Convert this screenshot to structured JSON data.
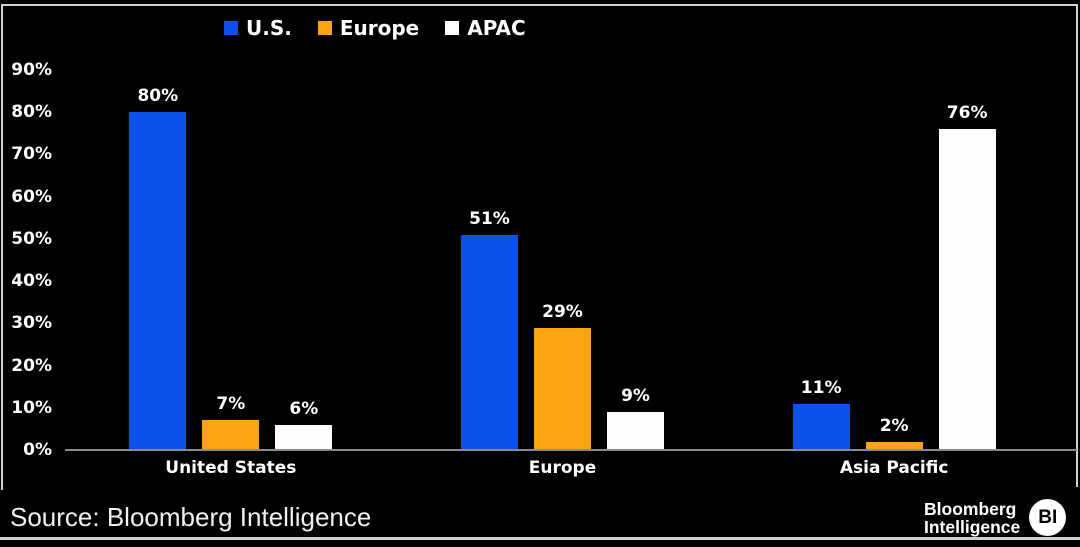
{
  "chart_data": {
    "type": "bar",
    "title": "",
    "categories": [
      "United States",
      "Europe",
      "Asia Pacific"
    ],
    "series": [
      {
        "name": "U.S.",
        "color": "#0d52e8",
        "values": [
          80,
          51,
          11
        ]
      },
      {
        "name": "Europe",
        "color": "#fca414",
        "values": [
          7,
          29,
          2
        ]
      },
      {
        "name": "APAC",
        "color": "#fdfdfb",
        "values": [
          6,
          9,
          76
        ]
      }
    ],
    "value_label_suffix": "%",
    "y_ticks": [
      0,
      10,
      20,
      30,
      40,
      50,
      60,
      70,
      80,
      90
    ],
    "y_tick_suffix": "%",
    "ylim": [
      0,
      90
    ],
    "grid": false,
    "legend_position": "top"
  },
  "footer": {
    "source": "Source: Bloomberg Intelligence",
    "brand": {
      "line1": "Bloomberg",
      "line2": "Intelligence",
      "badge": "BI"
    }
  },
  "colors": {
    "background": "#000000",
    "frame_border": "#d2d2d2",
    "axis_line": "#8a8a8a",
    "text": "#ffffff",
    "source_text": "#f0f0f0"
  }
}
